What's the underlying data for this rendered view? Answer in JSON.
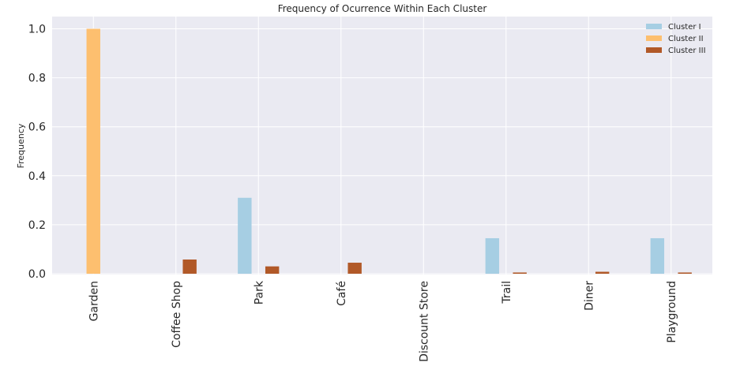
{
  "chart_data": {
    "type": "bar",
    "title": "Frequency of Ocurrence Within Each Cluster",
    "xlabel": "",
    "ylabel": "Frequency",
    "ylim": [
      0,
      1.05
    ],
    "yticks": [
      "0.0",
      "0.2",
      "0.4",
      "0.6",
      "0.8",
      "1.0"
    ],
    "grid": true,
    "legend_position": "top-right",
    "categories": [
      "Garden",
      "Coffee Shop",
      "Park",
      "Café",
      "Discount Store",
      "Trail",
      "Diner",
      "Playground"
    ],
    "series": [
      {
        "name": "Cluster I",
        "color": "#a6cee3",
        "values": [
          0,
          0,
          0.31,
          0,
          0,
          0.145,
          0,
          0.145
        ]
      },
      {
        "name": "Cluster II",
        "color": "#fdbf6f",
        "values": [
          1.0,
          0,
          0,
          0,
          0,
          0,
          0,
          0
        ]
      },
      {
        "name": "Cluster III",
        "color": "#b15928",
        "values": [
          0,
          0.058,
          0.03,
          0.045,
          0,
          0.005,
          0.008,
          0.005
        ]
      }
    ]
  }
}
